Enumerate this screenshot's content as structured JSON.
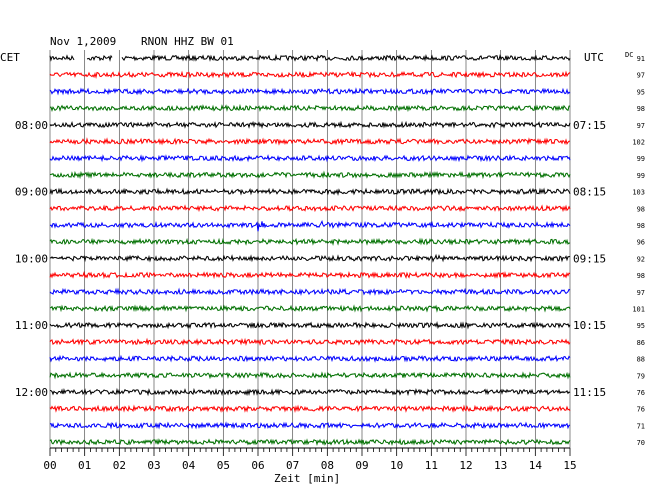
{
  "header": {
    "date": "Nov 1,2009",
    "station": "RNON HHZ BW 01",
    "left_tz": "CET",
    "right_tz": "UTC",
    "dc_label": "DC"
  },
  "chart_data": {
    "type": "line",
    "title": "Nov 1,2009   RNON HHZ BW 01",
    "xlabel": "Zeit [min]",
    "xlim": [
      0,
      15
    ],
    "x_ticks": [
      "00",
      "01",
      "02",
      "03",
      "04",
      "05",
      "06",
      "07",
      "08",
      "09",
      "10",
      "11",
      "12",
      "13",
      "14",
      "15"
    ],
    "left_time_labels": [
      "08:00",
      "09:00",
      "10:00",
      "11:00",
      "12:00"
    ],
    "right_time_labels": [
      "07:15",
      "08:15",
      "09:15",
      "10:15",
      "11:15"
    ],
    "trace_colors": [
      "#000000",
      "#ff0000",
      "#0000ff",
      "#007000"
    ],
    "dc_values": [
      91,
      97,
      95,
      98,
      97,
      102,
      99,
      99,
      103,
      98,
      98,
      96,
      92,
      98,
      97,
      101,
      95,
      86,
      88,
      79,
      76,
      76,
      71,
      70
    ],
    "events": [
      {
        "trace": 10,
        "minute": 6.0,
        "amplitude": "large"
      },
      {
        "trace": 10,
        "minute": 7.8,
        "amplitude": "small"
      },
      {
        "trace": 12,
        "minute": 11.0,
        "amplitude": "small"
      }
    ],
    "gaps": [
      {
        "trace": 0,
        "from_minute": 0.7,
        "to_minute": 1.05
      },
      {
        "trace": 0,
        "from_minute": 1.8,
        "to_minute": 2.05
      }
    ],
    "grid": "vertical"
  }
}
